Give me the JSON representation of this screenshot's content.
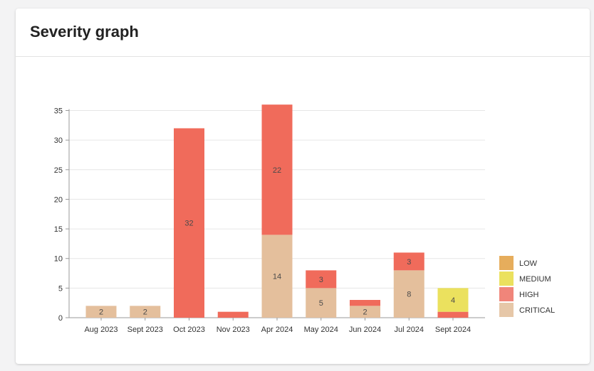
{
  "card": {
    "title": "Severity graph"
  },
  "chart_data": {
    "type": "bar",
    "stacked": true,
    "categories": [
      "Aug 2023",
      "Sept 2023",
      "Oct 2023",
      "Nov 2023",
      "Apr 2024",
      "May 2024",
      "Jun 2024",
      "Jul 2024",
      "Sept 2024"
    ],
    "series": [
      {
        "name": "CRITICAL",
        "color": "#e4bf9c",
        "values": [
          2,
          2,
          0,
          0,
          14,
          5,
          2,
          8,
          0
        ]
      },
      {
        "name": "HIGH",
        "color": "#f06b5b",
        "values": [
          0,
          0,
          32,
          1,
          22,
          3,
          1,
          3,
          1
        ]
      },
      {
        "name": "MEDIUM",
        "color": "#ebe15e",
        "values": [
          0,
          0,
          0,
          0,
          0,
          0,
          0,
          0,
          4
        ]
      },
      {
        "name": "LOW",
        "color": "#e6ad5c",
        "values": [
          0,
          0,
          0,
          0,
          0,
          0,
          0,
          0,
          0
        ]
      }
    ],
    "legend": {
      "position": "right",
      "order": [
        "LOW",
        "MEDIUM",
        "HIGH",
        "CRITICAL"
      ],
      "swatch_colors": {
        "LOW": "#e6ad5c",
        "MEDIUM": "#ebe15e",
        "HIGH": "#f0857a",
        "CRITICAL": "#e6c7a8"
      }
    },
    "data_labels": [
      {
        "category": "Aug 2023",
        "series": "CRITICAL",
        "text": "2"
      },
      {
        "category": "Sept 2023",
        "series": "CRITICAL",
        "text": "2"
      },
      {
        "category": "Oct 2023",
        "series": "HIGH",
        "text": "32"
      },
      {
        "category": "Apr 2024",
        "series": "CRITICAL",
        "text": "14"
      },
      {
        "category": "Apr 2024",
        "series": "HIGH",
        "text": "22"
      },
      {
        "category": "May 2024",
        "series": "CRITICAL",
        "text": "5"
      },
      {
        "category": "May 2024",
        "series": "HIGH",
        "text": "3"
      },
      {
        "category": "Jun 2024",
        "series": "CRITICAL",
        "text": "2"
      },
      {
        "category": "Jul 2024",
        "series": "CRITICAL",
        "text": "8"
      },
      {
        "category": "Jul 2024",
        "series": "HIGH",
        "text": "3"
      },
      {
        "category": "Sept 2024",
        "series": "MEDIUM",
        "text": "4"
      }
    ],
    "yticks": [
      0,
      5,
      10,
      15,
      20,
      25,
      30,
      35
    ],
    "ylim": [
      0,
      35
    ],
    "grid": true,
    "title": "",
    "xlabel": "",
    "ylabel": ""
  }
}
